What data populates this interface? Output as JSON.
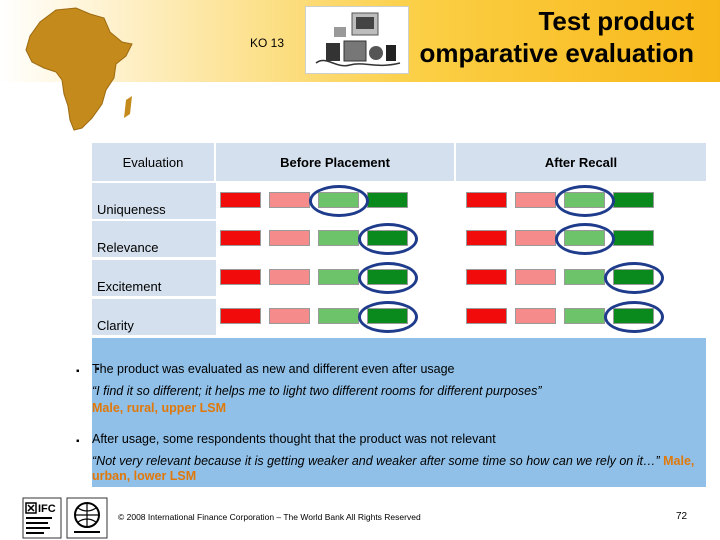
{
  "header": {
    "code": "KO 13",
    "title_line1": "Test product",
    "title_line2": "omparative evaluation"
  },
  "grid": {
    "columns": [
      "Evaluation",
      "Before Placement",
      "After Recall"
    ],
    "swatch_colors": [
      "#f20b0b",
      "#f58b8b",
      "#6cc36a",
      "#0a8a1c"
    ],
    "rows": [
      {
        "label": "Uniqueness",
        "before_selected": 2,
        "after_selected": 2
      },
      {
        "label": "Relevance",
        "before_selected": 3,
        "after_selected": 2
      },
      {
        "label": "Excitement",
        "before_selected": 3,
        "after_selected": 3
      },
      {
        "label": "Clarity",
        "before_selected": 3,
        "after_selected": 3
      }
    ],
    "oval_color": "#1f3c8c"
  },
  "notes": [
    {
      "text": "The product was evaluated as new and different even after usage",
      "quote": "“I find it so different; it helps me to light two different rooms for different purposes”",
      "who": "Male, rural, upper LSM"
    },
    {
      "text": "After usage, some respondents thought that the product was not relevant",
      "quote": "“Not very relevant because it is getting weaker and weaker after some time so how can we rely on it…”",
      "who": "Male, urban, lower LSM"
    }
  ],
  "footer": {
    "logo1_icon": "ifc-logo-icon",
    "logo2_icon": "world-bank-logo-icon",
    "copyright": "© 2008 International Finance Corporation – The World Bank All Rights Reserved",
    "page": "72"
  }
}
